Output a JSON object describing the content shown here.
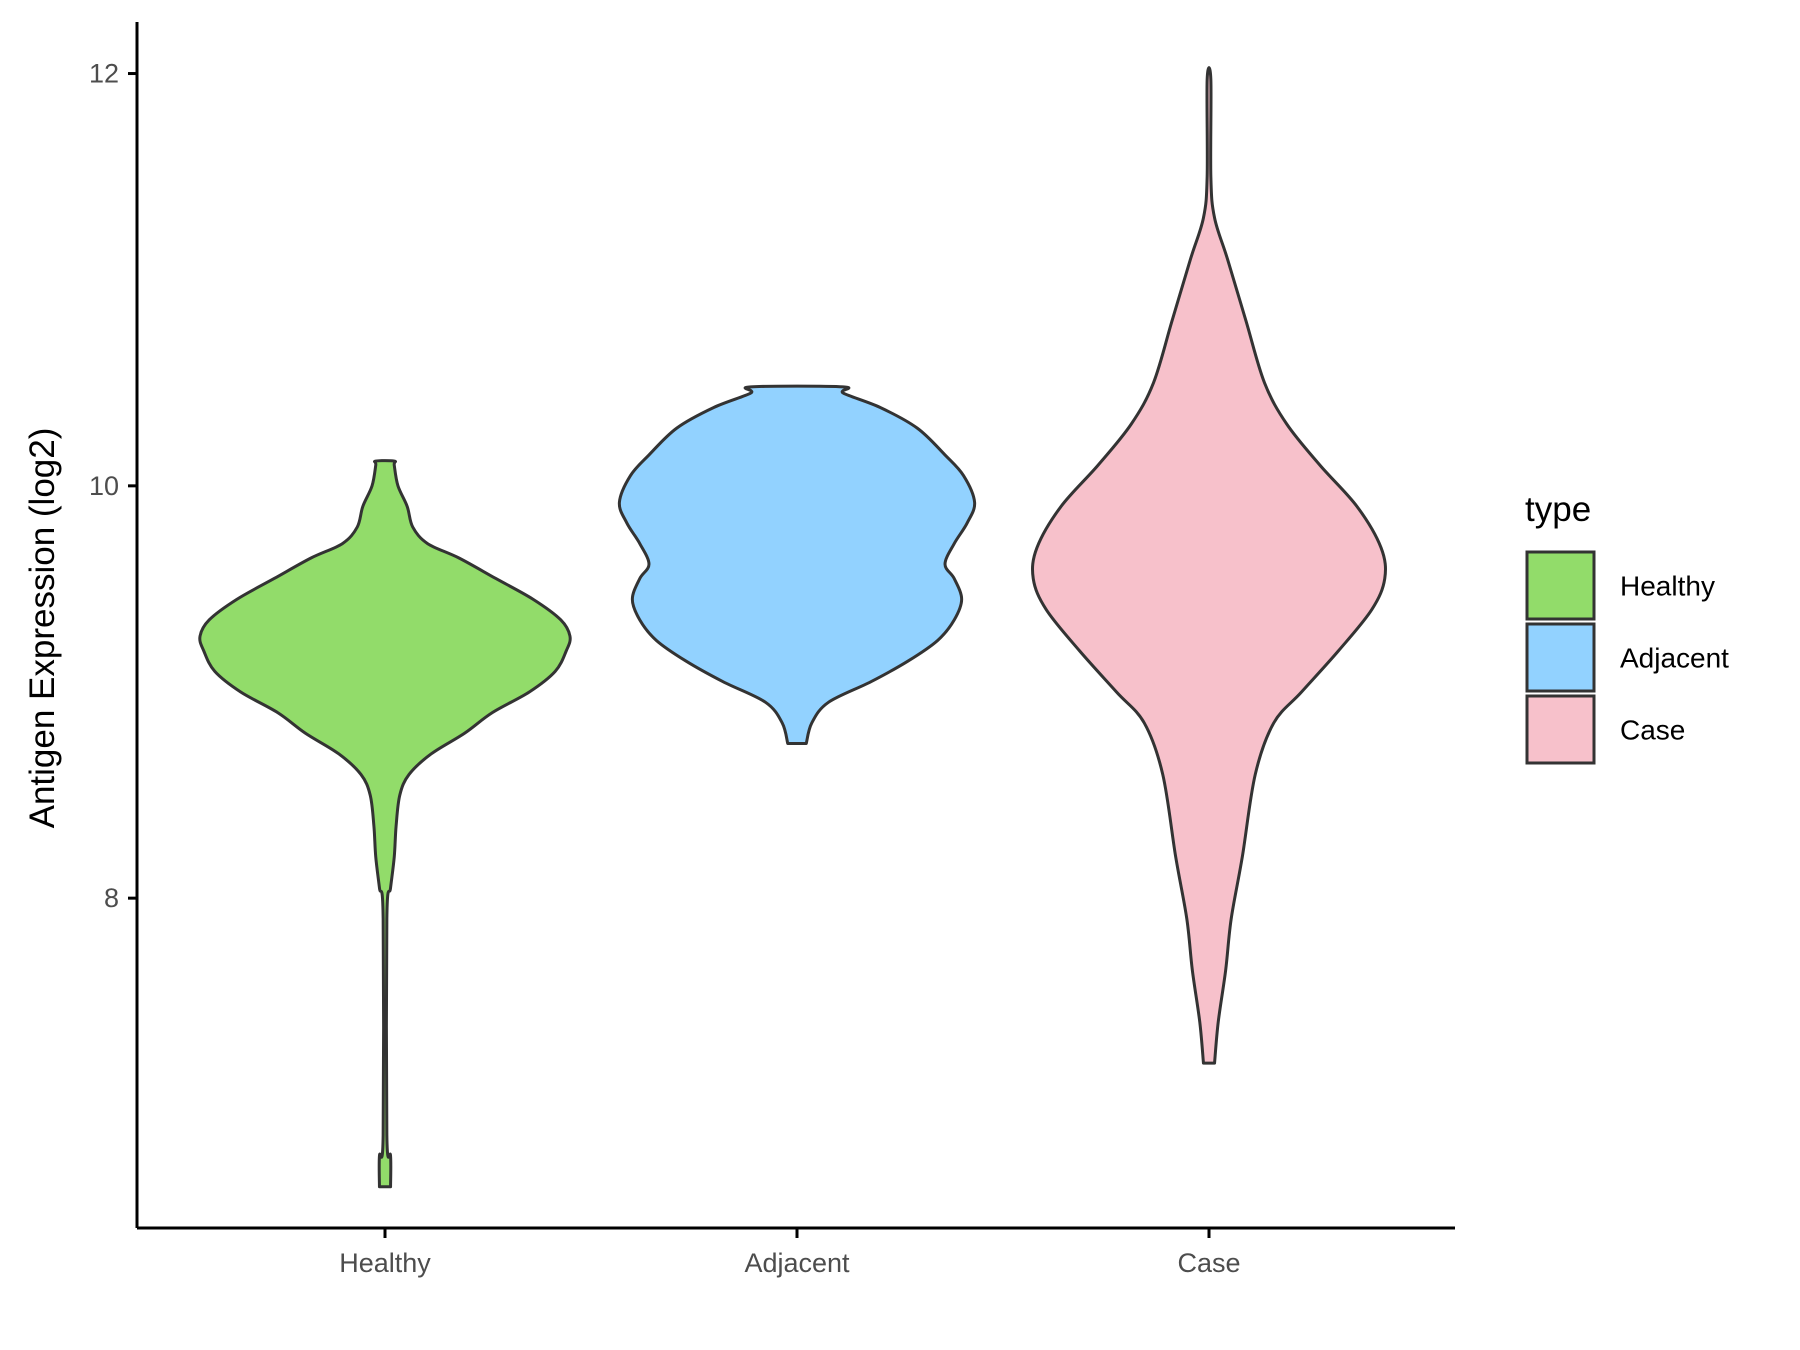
{
  "chart_data": {
    "type": "violin",
    "title": "",
    "xlabel": "",
    "ylabel": "Antigen Expression (log2)",
    "ylim": [
      6.4,
      12.25
    ],
    "yticks": [
      8,
      10,
      12
    ],
    "categories": [
      "Healthy",
      "Adjacent",
      "Case"
    ],
    "series": [
      {
        "name": "Healthy",
        "color": "#92DC6A",
        "min": 6.6,
        "max": 10.12,
        "density_profile": [
          [
            6.6,
            0.03
          ],
          [
            6.75,
            0.03
          ],
          [
            6.85,
            0.01
          ],
          [
            7.9,
            0.01
          ],
          [
            8.05,
            0.03
          ],
          [
            8.2,
            0.05
          ],
          [
            8.35,
            0.06
          ],
          [
            8.5,
            0.08
          ],
          [
            8.6,
            0.13
          ],
          [
            8.7,
            0.25
          ],
          [
            8.8,
            0.43
          ],
          [
            8.9,
            0.58
          ],
          [
            9.0,
            0.78
          ],
          [
            9.1,
            0.92
          ],
          [
            9.2,
            0.98
          ],
          [
            9.27,
            1.0
          ],
          [
            9.35,
            0.95
          ],
          [
            9.45,
            0.8
          ],
          [
            9.55,
            0.6
          ],
          [
            9.65,
            0.4
          ],
          [
            9.72,
            0.23
          ],
          [
            9.8,
            0.15
          ],
          [
            9.9,
            0.12
          ],
          [
            10.0,
            0.07
          ],
          [
            10.1,
            0.05
          ],
          [
            10.12,
            0.05
          ]
        ]
      },
      {
        "name": "Adjacent",
        "color": "#92D2FF",
        "min": 8.75,
        "max": 10.48,
        "density_profile": [
          [
            8.75,
            0.05
          ],
          [
            8.85,
            0.08
          ],
          [
            8.95,
            0.17
          ],
          [
            9.05,
            0.4
          ],
          [
            9.15,
            0.6
          ],
          [
            9.25,
            0.76
          ],
          [
            9.35,
            0.85
          ],
          [
            9.45,
            0.89
          ],
          [
            9.55,
            0.85
          ],
          [
            9.62,
            0.8
          ],
          [
            9.72,
            0.85
          ],
          [
            9.82,
            0.92
          ],
          [
            9.92,
            0.96
          ],
          [
            10.05,
            0.9
          ],
          [
            10.15,
            0.8
          ],
          [
            10.28,
            0.65
          ],
          [
            10.38,
            0.45
          ],
          [
            10.45,
            0.25
          ],
          [
            10.48,
            0.25
          ]
        ]
      },
      {
        "name": "Case",
        "color": "#F7C1CB",
        "min": 7.2,
        "max": 11.97,
        "density_profile": [
          [
            7.2,
            0.03
          ],
          [
            7.4,
            0.05
          ],
          [
            7.65,
            0.09
          ],
          [
            7.9,
            0.12
          ],
          [
            8.2,
            0.18
          ],
          [
            8.6,
            0.25
          ],
          [
            8.85,
            0.35
          ],
          [
            9.0,
            0.5
          ],
          [
            9.2,
            0.7
          ],
          [
            9.4,
            0.88
          ],
          [
            9.55,
            0.95
          ],
          [
            9.7,
            0.93
          ],
          [
            9.9,
            0.8
          ],
          [
            10.1,
            0.6
          ],
          [
            10.3,
            0.42
          ],
          [
            10.5,
            0.3
          ],
          [
            10.8,
            0.2
          ],
          [
            11.1,
            0.1
          ],
          [
            11.3,
            0.03
          ],
          [
            11.5,
            0.01
          ],
          [
            11.97,
            0.01
          ]
        ]
      }
    ],
    "legend": {
      "title": "type",
      "position": "right",
      "entries": [
        "Healthy",
        "Adjacent",
        "Case"
      ]
    },
    "grid": false
  }
}
